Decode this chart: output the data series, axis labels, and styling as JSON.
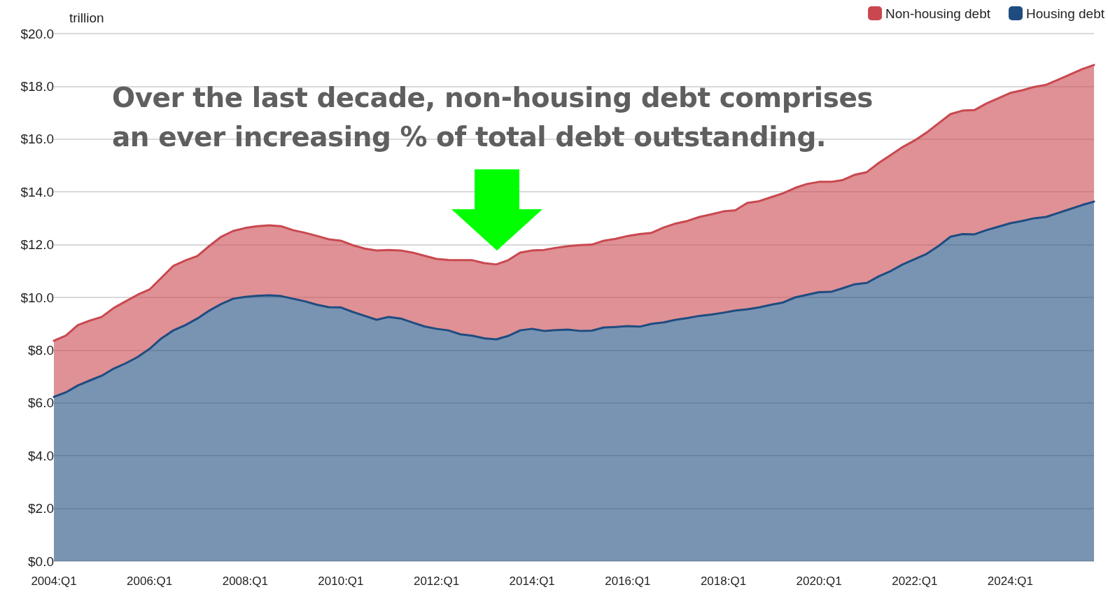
{
  "chart_data": {
    "type": "area",
    "stacked": true,
    "ylabel": "trillion",
    "annotations": [
      "Over the last decade, non-housing debt comprises an ever increasing % of total debt outstanding."
    ],
    "categories": [
      "2004:Q1",
      null,
      null,
      null,
      null,
      null,
      null,
      null,
      "2006:Q1",
      null,
      null,
      null,
      null,
      null,
      null,
      null,
      "2008:Q1",
      null,
      null,
      null,
      null,
      null,
      null,
      null,
      "2010:Q1",
      null,
      null,
      null,
      null,
      null,
      null,
      null,
      "2012:Q1",
      null,
      null,
      null,
      null,
      null,
      null,
      null,
      "2014:Q1",
      null,
      null,
      null,
      null,
      null,
      null,
      null,
      "2016:Q1",
      null,
      null,
      null,
      null,
      null,
      null,
      null,
      "2018:Q1",
      null,
      null,
      null,
      null,
      null,
      null,
      null,
      "2020:Q1",
      null,
      null,
      null,
      null,
      null,
      null,
      null,
      "2022:Q1",
      null,
      null,
      null,
      null,
      null,
      null,
      null,
      "2024:Q1",
      null,
      null,
      null,
      null,
      null,
      null,
      null
    ],
    "series": [
      {
        "name": "Housing debt",
        "color": "#1f4c80",
        "values": [
          6.23,
          6.4,
          6.66,
          6.85,
          7.03,
          7.3,
          7.5,
          7.74,
          8.05,
          8.45,
          8.75,
          8.95,
          9.2,
          9.5,
          9.75,
          9.95,
          10.02,
          10.06,
          10.08,
          10.05,
          9.95,
          9.85,
          9.72,
          9.63,
          9.62,
          9.45,
          9.3,
          9.15,
          9.26,
          9.2,
          9.05,
          8.9,
          8.81,
          8.75,
          8.6,
          8.55,
          8.45,
          8.41,
          8.54,
          8.75,
          8.81,
          8.73,
          8.76,
          8.78,
          8.73,
          8.74,
          8.86,
          8.88,
          8.91,
          8.89,
          9.0,
          9.05,
          9.15,
          9.22,
          9.3,
          9.35,
          9.42,
          9.5,
          9.55,
          9.62,
          9.72,
          9.81,
          10.0,
          10.1,
          10.2,
          10.21,
          10.35,
          10.5,
          10.55,
          10.8,
          11.0,
          11.25,
          11.45,
          11.65,
          11.95,
          12.3,
          12.4,
          12.39,
          12.55,
          12.68,
          12.81,
          12.9,
          13.0,
          13.05,
          13.2,
          13.35,
          13.5,
          13.63
        ]
      },
      {
        "name": "Non-housing debt",
        "color": "#c9484f",
        "values": [
          2.13,
          2.15,
          2.29,
          2.27,
          2.23,
          2.3,
          2.35,
          2.36,
          2.25,
          2.3,
          2.45,
          2.45,
          2.37,
          2.45,
          2.55,
          2.57,
          2.61,
          2.64,
          2.65,
          2.65,
          2.6,
          2.6,
          2.61,
          2.57,
          2.53,
          2.53,
          2.55,
          2.63,
          2.54,
          2.58,
          2.65,
          2.68,
          2.65,
          2.67,
          2.81,
          2.86,
          2.85,
          2.84,
          2.87,
          2.95,
          2.97,
          3.07,
          3.12,
          3.16,
          3.25,
          3.26,
          3.29,
          3.34,
          3.42,
          3.51,
          3.45,
          3.6,
          3.65,
          3.68,
          3.75,
          3.8,
          3.84,
          3.8,
          4.03,
          4.03,
          4.08,
          4.14,
          4.15,
          4.2,
          4.18,
          4.17,
          4.1,
          4.15,
          4.2,
          4.3,
          4.4,
          4.45,
          4.5,
          4.6,
          4.65,
          4.65,
          4.68,
          4.71,
          4.8,
          4.87,
          4.94,
          4.95,
          4.98,
          5.01,
          5.05,
          5.1,
          5.15,
          5.18
        ]
      }
    ],
    "ylim": [
      0,
      20
    ],
    "yticks": [
      {
        "value": 0,
        "label": "$0.0"
      },
      {
        "value": 2,
        "label": "$2.0"
      },
      {
        "value": 4,
        "label": "$4.0"
      },
      {
        "value": 6,
        "label": "$6.0"
      },
      {
        "value": 8,
        "label": "$8.0"
      },
      {
        "value": 10,
        "label": "$10.0"
      },
      {
        "value": 12,
        "label": "$12.0"
      },
      {
        "value": 14,
        "label": "$14.0"
      },
      {
        "value": 16,
        "label": "$16.0"
      },
      {
        "value": 18,
        "label": "$18.0"
      },
      {
        "value": 20,
        "label": "$20.0"
      }
    ],
    "grid": "y",
    "legend": "top right",
    "marker": "none",
    "line_style": "solid"
  }
}
